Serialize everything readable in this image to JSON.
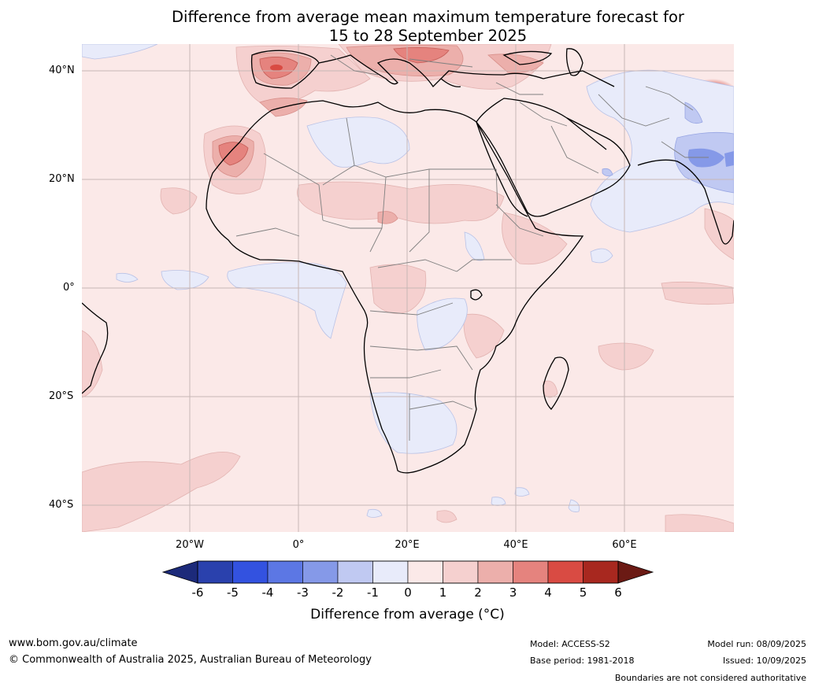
{
  "title": {
    "line1": "Difference from average mean maximum temperature forecast for",
    "line2": "15 to 28 September 2025"
  },
  "map": {
    "lat_labels": [
      "40°N",
      "20°N",
      "0°",
      "20°S",
      "40°S"
    ],
    "lon_labels": [
      "20°W",
      "0°",
      "20°E",
      "40°E",
      "60°E"
    ]
  },
  "colorbar": {
    "title": "Difference from average (°C)",
    "tick_labels": [
      "-6",
      "-5",
      "-4",
      "-3",
      "-2",
      "-1",
      "0",
      "1",
      "2",
      "3",
      "4",
      "5",
      "6"
    ],
    "colors_below": "#1c2a7a",
    "colors": [
      "#2a41ad",
      "#3352e0",
      "#5c77e4",
      "#8599e8",
      "#c0c9f2",
      "#e8ebfa",
      "#fbe9e8",
      "#f5d0cf",
      "#ecafab",
      "#e5837e",
      "#d94b43",
      "#a8281f"
    ],
    "colors_above": "#6b1a14"
  },
  "footer": {
    "website": "www.bom.gov.au/climate",
    "copyright": "© Commonwealth of Australia 2025, Australian Bureau of Meteorology",
    "model": "Model: ACCESS-S2",
    "base_period": "Base period: 1981-2018",
    "model_run": "Model run: 08/09/2025",
    "issued": "Issued: 10/09/2025",
    "disclaimer": "Boundaries are not considered authoritative"
  }
}
